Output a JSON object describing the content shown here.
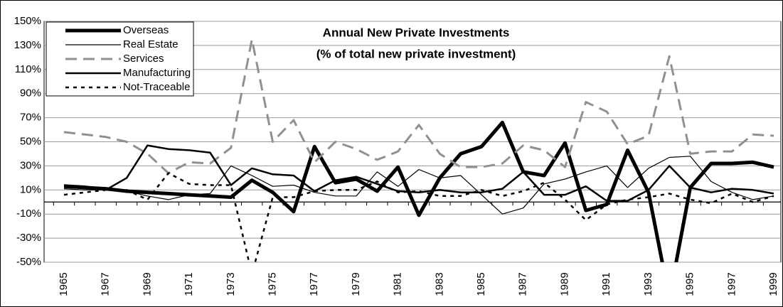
{
  "chart_data": {
    "type": "line",
    "title": "Annual New Private Investments",
    "subtitle": "(% of total new private investment)",
    "categories": [
      "1965",
      null,
      "1967",
      null,
      "1969",
      null,
      "1971",
      null,
      "1973",
      null,
      "1975",
      null,
      "1977",
      null,
      "1979",
      null,
      "1981",
      null,
      "1983",
      null,
      "1985",
      null,
      "1987",
      null,
      "1989",
      null,
      "1991",
      null,
      "1993",
      null,
      "1995",
      null,
      "1997",
      null,
      "1999"
    ],
    "ylim": [
      -50,
      150
    ],
    "yticks": [
      {
        "value": -50,
        "label": "-50%"
      },
      {
        "value": -30,
        "label": "-30%"
      },
      {
        "value": -10,
        "label": "-10%"
      },
      {
        "value": 10,
        "label": "10%"
      },
      {
        "value": 30,
        "label": "30%"
      },
      {
        "value": 50,
        "label": "50%"
      },
      {
        "value": 70,
        "label": "70%"
      },
      {
        "value": 90,
        "label": "90%"
      },
      {
        "value": 110,
        "label": "110%"
      },
      {
        "value": 130,
        "label": "130%"
      },
      {
        "value": 150,
        "label": "150%"
      }
    ],
    "grid": true,
    "legend": "upper left",
    "series": [
      {
        "name": "Overseas",
        "color": "#000000",
        "values": [
          13,
          12,
          11,
          9,
          8,
          7,
          6,
          5,
          4,
          18,
          8,
          -8,
          46,
          16,
          19,
          9,
          29,
          -11,
          20,
          40,
          46,
          66,
          25,
          22,
          49,
          -7,
          -2,
          43,
          8,
          -80,
          12,
          32,
          32,
          33,
          29
        ]
      },
      {
        "name": "Real Estate",
        "color": "#000000",
        "values": [
          11,
          10,
          10,
          9,
          5,
          2,
          6,
          7,
          30,
          22,
          13,
          14,
          8,
          5,
          5,
          25,
          13,
          27,
          20,
          22,
          6,
          -10,
          -5,
          15,
          19,
          25,
          30,
          12,
          28,
          37,
          38,
          17,
          8,
          2,
          5
        ]
      },
      {
        "name": "Services",
        "color": "#909090",
        "values": [
          58,
          56,
          54,
          50,
          40,
          24,
          33,
          32,
          45,
          135,
          50,
          68,
          33,
          50,
          44,
          35,
          42,
          64,
          40,
          29,
          29,
          32,
          47,
          43,
          29,
          83,
          75,
          48,
          55,
          121,
          40,
          42,
          42,
          56,
          55
        ]
      },
      {
        "name": "Manufacturing",
        "color": "#000000",
        "values": [
          14,
          13,
          10,
          20,
          47,
          44,
          43,
          41,
          14,
          28,
          23,
          22,
          9,
          18,
          21,
          15,
          9,
          8,
          10,
          8,
          8,
          11,
          25,
          6,
          6,
          13,
          1,
          1,
          10,
          30,
          12,
          8,
          11,
          10,
          7
        ]
      },
      {
        "name": "Not-Traceable",
        "color": "#000000",
        "values": [
          6,
          8,
          10,
          10,
          2,
          24,
          15,
          14,
          14,
          -60,
          4,
          4,
          9,
          10,
          10,
          17,
          8,
          9,
          5,
          5,
          10,
          5,
          9,
          16,
          2,
          -15,
          -2,
          2,
          4,
          7,
          2,
          -1,
          7,
          0,
          5
        ]
      }
    ]
  }
}
